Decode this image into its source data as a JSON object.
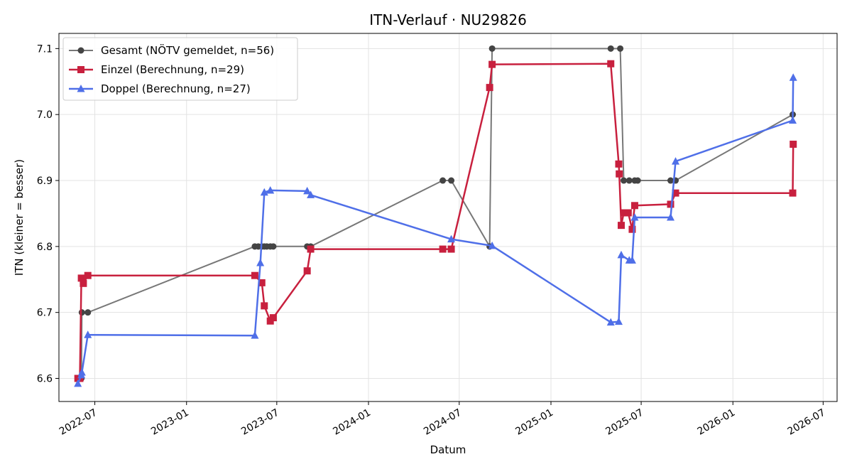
{
  "chart_data": {
    "type": "line",
    "title": "ITN-Verlauf · NU29826",
    "xlabel": "Datum",
    "ylabel": "ITN  (kleiner = besser)",
    "x_axis_type": "date",
    "xlim": [
      "2022-04-20",
      "2026-07-29"
    ],
    "ylim": [
      6.565,
      7.123
    ],
    "x_ticks": [
      "2022-07-01",
      "2023-01-01",
      "2023-07-01",
      "2024-01-01",
      "2024-07-01",
      "2025-01-01",
      "2025-07-01",
      "2026-01-01",
      "2026-07-01"
    ],
    "x_tick_labels": [
      "2022-07",
      "2023-01",
      "2023-07",
      "2024-01",
      "2024-07",
      "2025-01",
      "2025-07",
      "2026-01",
      "2026-07"
    ],
    "y_ticks": [
      6.6,
      6.7,
      6.8,
      6.9,
      7.0,
      7.1
    ],
    "y_tick_labels": [
      "6.6",
      "6.7",
      "6.8",
      "6.9",
      "7.0",
      "7.1"
    ],
    "grid": true,
    "legend_position": "top-left",
    "series": [
      {
        "name": "Gesamt (NÖTV gemeldet, n=56)",
        "color": "#777777",
        "marker_color": "#444444",
        "marker": "circle",
        "points": [
          {
            "x": "2022-05-28",
            "y": 6.6
          },
          {
            "x": "2022-06-01",
            "y": 6.6
          },
          {
            "x": "2022-06-04",
            "y": 6.6
          },
          {
            "x": "2022-06-05",
            "y": 6.7
          },
          {
            "x": "2022-06-17",
            "y": 6.7
          },
          {
            "x": "2023-05-18",
            "y": 6.8
          },
          {
            "x": "2023-05-25",
            "y": 6.8
          },
          {
            "x": "2023-06-01",
            "y": 6.8
          },
          {
            "x": "2023-06-06",
            "y": 6.8
          },
          {
            "x": "2023-06-11",
            "y": 6.8
          },
          {
            "x": "2023-06-18",
            "y": 6.8
          },
          {
            "x": "2023-06-24",
            "y": 6.8
          },
          {
            "x": "2023-08-31",
            "y": 6.8
          },
          {
            "x": "2023-09-07",
            "y": 6.8
          },
          {
            "x": "2024-05-29",
            "y": 6.9
          },
          {
            "x": "2024-06-15",
            "y": 6.9
          },
          {
            "x": "2024-08-31",
            "y": 6.8
          },
          {
            "x": "2024-09-05",
            "y": 7.1
          },
          {
            "x": "2025-05-01",
            "y": 7.1
          },
          {
            "x": "2025-05-20",
            "y": 7.1
          },
          {
            "x": "2025-05-27",
            "y": 6.9
          },
          {
            "x": "2025-06-07",
            "y": 6.9
          },
          {
            "x": "2025-06-18",
            "y": 6.9
          },
          {
            "x": "2025-06-24",
            "y": 6.9
          },
          {
            "x": "2025-08-29",
            "y": 6.9
          },
          {
            "x": "2025-09-08",
            "y": 6.9
          },
          {
            "x": "2026-05-01",
            "y": 7.0
          }
        ]
      },
      {
        "name": "Einzel (Berechnung, n=29)",
        "color": "#c8203e",
        "marker_color": "#c8203e",
        "marker": "square",
        "points": [
          {
            "x": "2022-05-28",
            "y": 6.6
          },
          {
            "x": "2022-06-01",
            "y": 6.6
          },
          {
            "x": "2022-06-04",
            "y": 6.752
          },
          {
            "x": "2022-06-08",
            "y": 6.744
          },
          {
            "x": "2022-06-17",
            "y": 6.756
          },
          {
            "x": "2023-05-18",
            "y": 6.756
          },
          {
            "x": "2023-06-01",
            "y": 6.745
          },
          {
            "x": "2023-06-06",
            "y": 6.71
          },
          {
            "x": "2023-06-18",
            "y": 6.687
          },
          {
            "x": "2023-06-24",
            "y": 6.692
          },
          {
            "x": "2023-08-31",
            "y": 6.763
          },
          {
            "x": "2023-09-07",
            "y": 6.796
          },
          {
            "x": "2024-05-29",
            "y": 6.796
          },
          {
            "x": "2024-06-15",
            "y": 6.796
          },
          {
            "x": "2024-08-31",
            "y": 7.041
          },
          {
            "x": "2024-09-05",
            "y": 7.076
          },
          {
            "x": "2025-05-01",
            "y": 7.077
          },
          {
            "x": "2025-05-17",
            "y": 6.925
          },
          {
            "x": "2025-05-18",
            "y": 6.91
          },
          {
            "x": "2025-05-22",
            "y": 6.832
          },
          {
            "x": "2025-05-27",
            "y": 6.851
          },
          {
            "x": "2025-06-05",
            "y": 6.851
          },
          {
            "x": "2025-06-13",
            "y": 6.826
          },
          {
            "x": "2025-06-18",
            "y": 6.862
          },
          {
            "x": "2025-08-29",
            "y": 6.864
          },
          {
            "x": "2025-09-08",
            "y": 6.881
          },
          {
            "x": "2026-05-01",
            "y": 6.881
          },
          {
            "x": "2026-05-02",
            "y": 6.955
          }
        ]
      },
      {
        "name": "Doppel (Berechnung, n=27)",
        "color": "#4f6fe8",
        "marker_color": "#4f6fe8",
        "marker": "triangle",
        "points": [
          {
            "x": "2022-05-28",
            "y": 6.592
          },
          {
            "x": "2022-06-04",
            "y": 6.605
          },
          {
            "x": "2022-06-05",
            "y": 6.609
          },
          {
            "x": "2022-06-17",
            "y": 6.666
          },
          {
            "x": "2023-05-18",
            "y": 6.665
          },
          {
            "x": "2023-05-29",
            "y": 6.775
          },
          {
            "x": "2023-06-06",
            "y": 6.882
          },
          {
            "x": "2023-06-18",
            "y": 6.885
          },
          {
            "x": "2023-08-31",
            "y": 6.884
          },
          {
            "x": "2023-09-07",
            "y": 6.878
          },
          {
            "x": "2024-06-15",
            "y": 6.811
          },
          {
            "x": "2024-09-05",
            "y": 6.801
          },
          {
            "x": "2025-05-01",
            "y": 6.685
          },
          {
            "x": "2025-05-17",
            "y": 6.686
          },
          {
            "x": "2025-05-22",
            "y": 6.787
          },
          {
            "x": "2025-06-07",
            "y": 6.779
          },
          {
            "x": "2025-06-13",
            "y": 6.779
          },
          {
            "x": "2025-06-18",
            "y": 6.844
          },
          {
            "x": "2025-08-29",
            "y": 6.844
          },
          {
            "x": "2025-09-08",
            "y": 6.929
          },
          {
            "x": "2026-05-01",
            "y": 6.991
          },
          {
            "x": "2026-05-02",
            "y": 7.056
          }
        ]
      }
    ]
  }
}
